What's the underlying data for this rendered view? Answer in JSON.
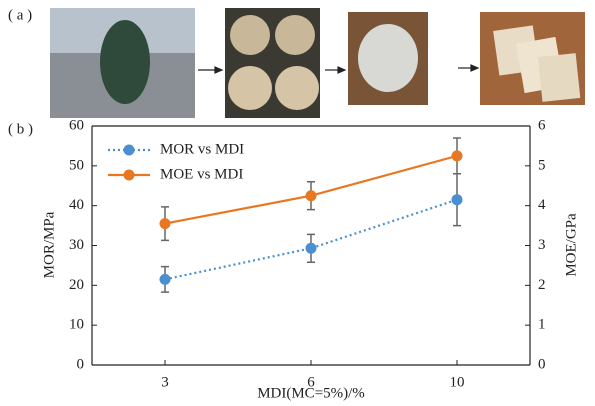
{
  "panel_a_label": "( a )",
  "chart_data": {
    "type": "line",
    "panel_label": "( b )",
    "x_label": "MDI(MC=5%)/%",
    "y_label": "MOR/MPa",
    "y2_label": "MOE/GPa",
    "categories": [
      "3",
      "6",
      "10"
    ],
    "ylim": [
      0,
      60
    ],
    "yticks": [
      0,
      10,
      20,
      30,
      40,
      50,
      60
    ],
    "y2lim": [
      0,
      6
    ],
    "y2ticks": [
      0,
      1,
      2,
      3,
      4,
      5,
      6
    ],
    "legend": "upper left",
    "series": [
      {
        "name": "MOR vs MDI",
        "color": "#4a90d0",
        "dash": "dotted",
        "values": [
          21.5,
          29.3,
          41.5
        ],
        "errors": [
          3.2,
          3.5,
          6.5
        ]
      },
      {
        "name": "MOE vs MDI",
        "color": "#e87722",
        "dash": "solid",
        "axis": "y2",
        "values": [
          3.55,
          4.25,
          5.25
        ],
        "errors": [
          0.42,
          0.35,
          0.45
        ]
      }
    ]
  }
}
